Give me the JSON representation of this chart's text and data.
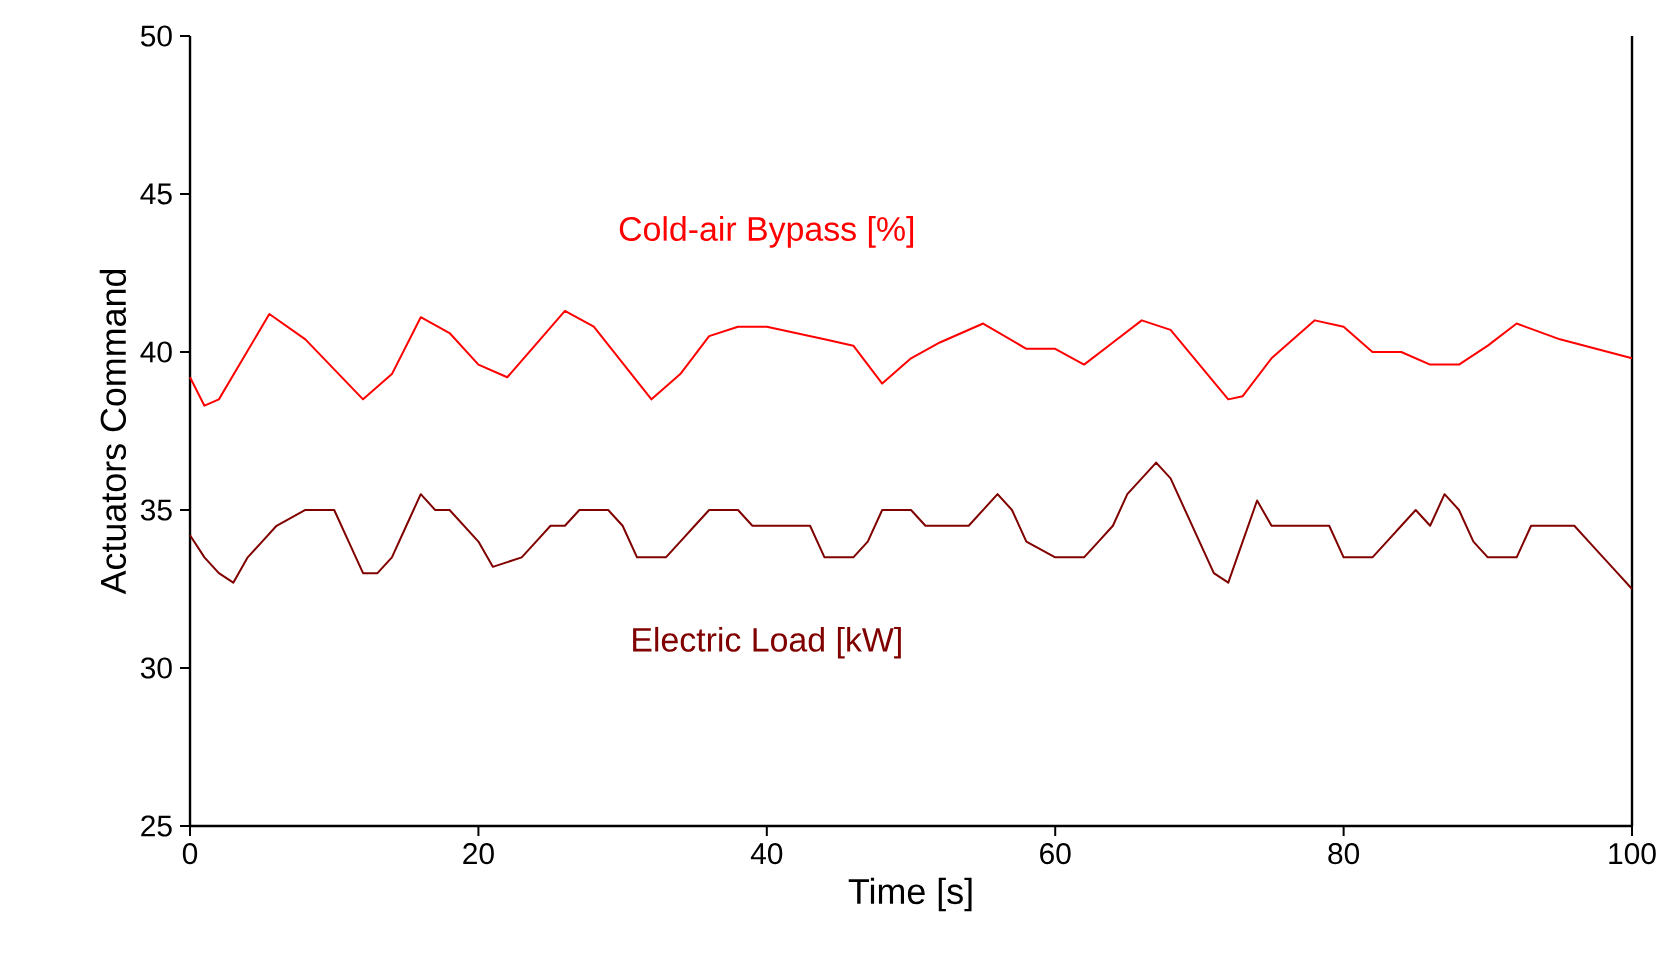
{
  "chart_data": {
    "type": "line",
    "xlabel": "Time [s]",
    "ylabel": "Actuators Command",
    "xlim": [
      0,
      100
    ],
    "xticks": [
      0,
      20,
      40,
      60,
      80,
      100
    ],
    "ylim": [
      25,
      50
    ],
    "yticks": [
      25,
      30,
      35,
      40,
      45,
      50
    ],
    "grid": false,
    "legend": false,
    "marker": "none",
    "line_style": "solid",
    "series": [
      {
        "name": "Cold-air Bypass [%]",
        "color": "#ff0000",
        "x": [
          0,
          1,
          2,
          5.5,
          8,
          12,
          14,
          16,
          18,
          20,
          22,
          26,
          28,
          32,
          34,
          36,
          38,
          40,
          44,
          46,
          48,
          50,
          52,
          55,
          58,
          60,
          62,
          64,
          66,
          68,
          72,
          73,
          75,
          78,
          80,
          82,
          84,
          86,
          88,
          90,
          92,
          95,
          100
        ],
        "values": [
          39.2,
          38.3,
          38.5,
          41.2,
          40.4,
          38.5,
          39.3,
          41.1,
          40.6,
          39.6,
          39.2,
          41.3,
          40.8,
          38.5,
          39.3,
          40.5,
          40.8,
          40.8,
          40.4,
          40.2,
          39.0,
          39.8,
          40.3,
          40.9,
          40.1,
          40.1,
          39.6,
          40.3,
          41.0,
          40.7,
          38.5,
          38.6,
          39.8,
          41.0,
          40.8,
          40.0,
          40.0,
          39.6,
          39.6,
          40.2,
          40.9,
          40.4,
          39.8
        ]
      },
      {
        "name": "Electric Load [kW]",
        "color": "#800000",
        "x": [
          0,
          1,
          2,
          3,
          4,
          5,
          6,
          8,
          10,
          11,
          12,
          13,
          14,
          15,
          16,
          17,
          18,
          20,
          21,
          23,
          24,
          25,
          26,
          27,
          29,
          30,
          31,
          33,
          34,
          35,
          36,
          38,
          39,
          43,
          44,
          46,
          47,
          48,
          50,
          51,
          54,
          55,
          56,
          57,
          58,
          60,
          62,
          63,
          64,
          65,
          66,
          67,
          68,
          69,
          70,
          71,
          72,
          73,
          74,
          75,
          76,
          78,
          79,
          80,
          82,
          83,
          84,
          85,
          86,
          87,
          88,
          89,
          90,
          92,
          93,
          96,
          97,
          98,
          99,
          100
        ],
        "values": [
          34.2,
          33.5,
          33,
          32.7,
          33.5,
          34,
          34.5,
          35,
          35,
          34,
          33,
          33,
          33.5,
          34.5,
          35.5,
          35,
          35,
          34,
          33.2,
          33.5,
          34,
          34.5,
          34.5,
          35,
          35,
          34.5,
          33.5,
          33.5,
          34,
          34.5,
          35,
          35,
          34.5,
          34.5,
          33.5,
          33.5,
          34,
          35,
          35,
          34.5,
          34.5,
          35,
          35.5,
          35,
          34,
          33.5,
          33.5,
          34,
          34.5,
          35.5,
          36,
          36.5,
          36,
          35,
          34,
          33,
          32.7,
          34,
          35.3,
          34.5,
          34.5,
          34.5,
          34.5,
          33.5,
          33.5,
          34,
          34.5,
          35,
          34.5,
          35.5,
          35,
          34,
          33.5,
          33.5,
          34.5,
          34.5,
          34,
          33.5,
          33,
          32.5
        ]
      }
    ]
  }
}
